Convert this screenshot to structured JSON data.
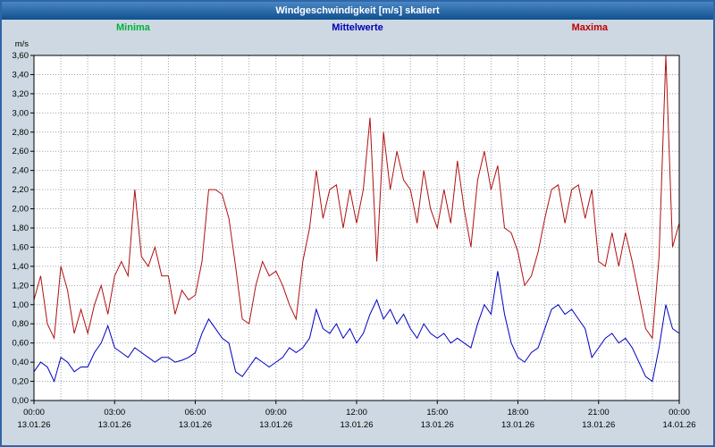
{
  "window": {
    "title": "Windgeschwindigkeit [m/s] skaliert"
  },
  "chart_data": {
    "type": "line",
    "title": "Windgeschwindigkeit [m/s] skaliert",
    "ylabel": "m/s",
    "xlabel": "",
    "ylim": [
      0.0,
      3.6
    ],
    "y_tick_step": 0.2,
    "x_hours": 24,
    "grid": true,
    "grid_style": "dotted",
    "legend_position": "top",
    "y_tick_labels": [
      "0,00",
      "0,20",
      "0,40",
      "0,60",
      "0,80",
      "1,00",
      "1,20",
      "1,40",
      "1,60",
      "1,80",
      "2,00",
      "2,20",
      "2,40",
      "2,60",
      "2,80",
      "3,00",
      "3,20",
      "3,40",
      "3,60"
    ],
    "x_tick_labels": [
      {
        "time": "00:00",
        "date": "13.01.26"
      },
      {
        "time": "03:00",
        "date": "13.01.26"
      },
      {
        "time": "06:00",
        "date": "13.01.26"
      },
      {
        "time": "09:00",
        "date": "13.01.26"
      },
      {
        "time": "12:00",
        "date": "13.01.26"
      },
      {
        "time": "15:00",
        "date": "13.01.26"
      },
      {
        "time": "18:00",
        "date": "13.01.26"
      },
      {
        "time": "21:00",
        "date": "13.01.26"
      },
      {
        "time": "00:00",
        "date": "14.01.26"
      }
    ],
    "legend": [
      {
        "name": "Minima",
        "color": "#00b23b"
      },
      {
        "name": "Mittelwerte",
        "color": "#0000b4"
      },
      {
        "name": "Maxima",
        "color": "#c00000"
      }
    ],
    "sample_interval_minutes": 15,
    "series": [
      {
        "name": "Minima",
        "color": "#00a03c",
        "style": "dashed",
        "constant_value": 0.0
      },
      {
        "name": "Mittelwerte",
        "color": "#0000c0",
        "style": "solid",
        "values": [
          0.3,
          0.4,
          0.35,
          0.2,
          0.45,
          0.4,
          0.3,
          0.35,
          0.35,
          0.5,
          0.6,
          0.78,
          0.55,
          0.5,
          0.45,
          0.55,
          0.5,
          0.45,
          0.4,
          0.45,
          0.45,
          0.4,
          0.42,
          0.45,
          0.5,
          0.7,
          0.85,
          0.75,
          0.65,
          0.6,
          0.3,
          0.25,
          0.35,
          0.45,
          0.4,
          0.35,
          0.4,
          0.45,
          0.55,
          0.5,
          0.55,
          0.65,
          0.95,
          0.75,
          0.7,
          0.8,
          0.65,
          0.75,
          0.6,
          0.7,
          0.9,
          1.05,
          0.85,
          0.95,
          0.8,
          0.9,
          0.75,
          0.65,
          0.8,
          0.7,
          0.65,
          0.7,
          0.6,
          0.65,
          0.6,
          0.55,
          0.8,
          1.0,
          0.9,
          1.35,
          0.9,
          0.6,
          0.45,
          0.4,
          0.5,
          0.55,
          0.75,
          0.95,
          1.0,
          0.9,
          0.95,
          0.85,
          0.75,
          0.45,
          0.55,
          0.65,
          0.7,
          0.6,
          0.65,
          0.55,
          0.4,
          0.25,
          0.2,
          0.55,
          1.0,
          0.75,
          0.7
        ]
      },
      {
        "name": "Maxima",
        "color": "#b01010",
        "style": "solid",
        "values": [
          1.05,
          1.3,
          0.8,
          0.65,
          1.4,
          1.15,
          0.7,
          0.95,
          0.7,
          1.0,
          1.2,
          0.9,
          1.3,
          1.45,
          1.3,
          2.2,
          1.5,
          1.4,
          1.6,
          1.3,
          1.3,
          0.9,
          1.15,
          1.05,
          1.1,
          1.45,
          2.2,
          2.2,
          2.15,
          1.9,
          1.4,
          0.85,
          0.8,
          1.2,
          1.45,
          1.3,
          1.35,
          1.2,
          1.0,
          0.85,
          1.45,
          1.8,
          2.4,
          1.9,
          2.2,
          2.25,
          1.8,
          2.2,
          1.85,
          2.2,
          2.95,
          1.45,
          2.8,
          2.2,
          2.6,
          2.3,
          2.2,
          1.85,
          2.4,
          2.0,
          1.8,
          2.2,
          1.85,
          2.5,
          2.0,
          1.6,
          2.3,
          2.6,
          2.2,
          2.45,
          1.8,
          1.75,
          1.55,
          1.2,
          1.3,
          1.55,
          1.9,
          2.2,
          2.25,
          1.85,
          2.2,
          2.25,
          1.9,
          2.2,
          1.45,
          1.4,
          1.75,
          1.4,
          1.75,
          1.45,
          1.1,
          0.75,
          0.65,
          1.5,
          3.6,
          1.6,
          1.85
        ]
      }
    ]
  }
}
